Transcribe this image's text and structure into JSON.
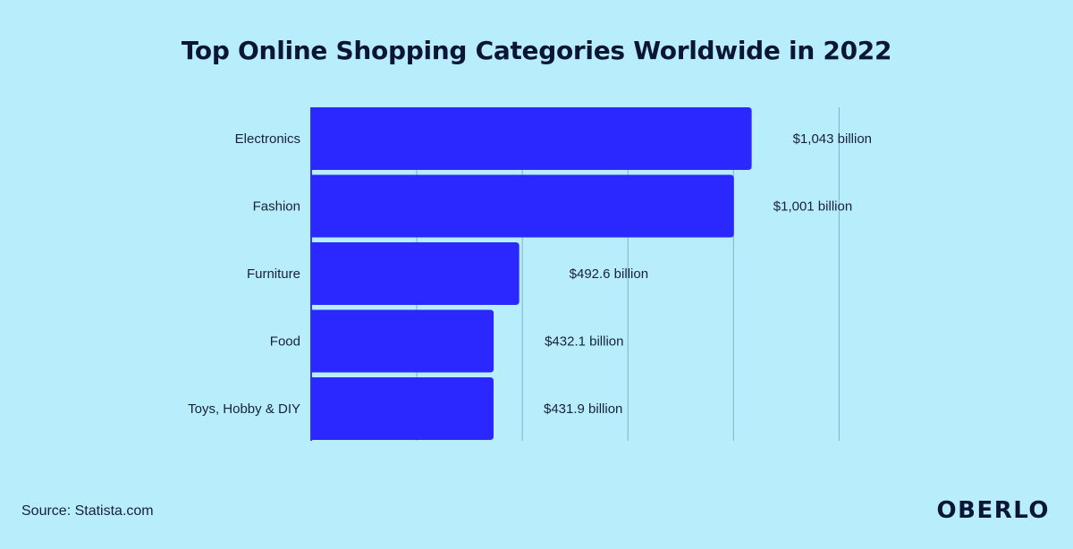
{
  "chart_data": {
    "type": "bar",
    "orientation": "horizontal",
    "title": "Top Online Shopping Categories Worldwide in 2022",
    "categories": [
      "Electronics",
      "Fashion",
      "Furniture",
      "Food",
      "Toys, Hobby & DIY"
    ],
    "values": [
      1043,
      1001,
      492.6,
      432.1,
      431.9
    ],
    "value_labels": [
      "$1,043 billion",
      "$1,001 billion",
      "$492.6 billion",
      "$432.1 billion",
      "$431.9 billion"
    ],
    "unit": "billion USD",
    "xlim": [
      0,
      1250
    ],
    "grid": true,
    "legend": "none",
    "colors": {
      "bar": "#2a27ff",
      "background": "#b8eefc",
      "grid": "#7fb2c9"
    }
  },
  "footer": {
    "source": "Source: Statista.com",
    "brand": "OBERLO"
  }
}
